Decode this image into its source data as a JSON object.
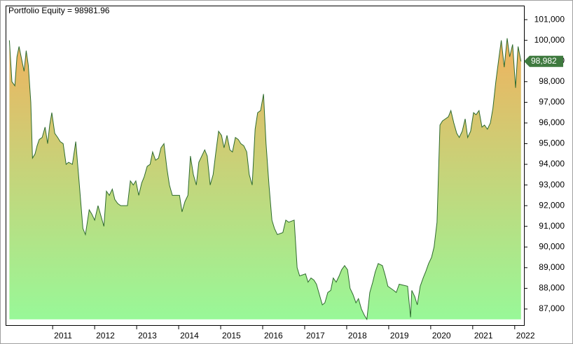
{
  "chart_data": {
    "type": "area",
    "title": "Portfolio Equity = 98981.96",
    "x": [
      2009.97,
      2010.03,
      2010.1,
      2010.15,
      2010.2,
      2010.27,
      2010.32,
      2010.37,
      2010.42,
      2010.48,
      2010.52,
      2010.58,
      2010.63,
      2010.68,
      2010.75,
      2010.82,
      2010.88,
      2010.93,
      2010.98,
      2011.05,
      2011.12,
      2011.18,
      2011.25,
      2011.32,
      2011.38,
      2011.47,
      2011.55,
      2011.62,
      2011.72,
      2011.78,
      2011.87,
      2011.93,
      2012.0,
      2012.08,
      2012.15,
      2012.22,
      2012.28,
      2012.35,
      2012.42,
      2012.48,
      2012.55,
      2012.62,
      2012.78,
      2012.85,
      2012.92,
      2012.98,
      2013.05,
      2013.12,
      2013.18,
      2013.25,
      2013.32,
      2013.38,
      2013.45,
      2013.52,
      2013.58,
      2013.65,
      2013.72,
      2013.78,
      2013.85,
      2014.02,
      2014.08,
      2014.15,
      2014.22,
      2014.28,
      2014.35,
      2014.42,
      2014.48,
      2014.55,
      2014.62,
      2014.68,
      2014.75,
      2014.82,
      2014.88,
      2014.95,
      2015.02,
      2015.08,
      2015.15,
      2015.22,
      2015.28,
      2015.35,
      2015.42,
      2015.48,
      2015.55,
      2015.62,
      2015.68,
      2015.75,
      2015.82,
      2015.88,
      2015.95,
      2016.02,
      2016.08,
      2016.15,
      2016.22,
      2016.28,
      2016.35,
      2016.48,
      2016.55,
      2016.62,
      2016.75,
      2016.82,
      2016.88,
      2017.02,
      2017.08,
      2017.15,
      2017.22,
      2017.28,
      2017.35,
      2017.42,
      2017.48,
      2017.55,
      2017.62,
      2017.68,
      2017.75,
      2017.82,
      2017.88,
      2017.95,
      2018.02,
      2018.08,
      2018.15,
      2018.22,
      2018.28,
      2018.35,
      2018.42,
      2018.48,
      2018.55,
      2018.62,
      2018.68,
      2018.75,
      2018.85,
      2018.92,
      2018.98,
      2019.05,
      2019.12,
      2019.18,
      2019.25,
      2019.45,
      2019.52,
      2019.55,
      2019.62,
      2019.68,
      2019.75,
      2019.82,
      2019.88,
      2019.95,
      2020.02,
      2020.08,
      2020.15,
      2020.22,
      2020.28,
      2020.35,
      2020.42,
      2020.48,
      2020.55,
      2020.62,
      2020.68,
      2020.75,
      2020.82,
      2020.88,
      2020.95,
      2021.02,
      2021.08,
      2021.15,
      2021.22,
      2021.28,
      2021.35,
      2021.42,
      2021.48,
      2021.55,
      2021.62,
      2021.68,
      2021.75,
      2021.82,
      2021.88,
      2021.95,
      2022.02,
      2022.08,
      2022.15
    ],
    "series": [
      {
        "name": "Portfolio Equity",
        "color": "#2e6b2e",
        "values": [
          100000,
          98000,
          97800,
          99200,
          99700,
          99000,
          98500,
          99500,
          98800,
          97000,
          94300,
          94500,
          94900,
          95200,
          95300,
          95800,
          95000,
          95900,
          96500,
          95500,
          95300,
          95100,
          95000,
          94000,
          94100,
          94000,
          95100,
          93400,
          90900,
          90600,
          91800,
          91600,
          91300,
          92000,
          91500,
          91000,
          92700,
          92500,
          92800,
          92300,
          92100,
          92000,
          92000,
          93200,
          93000,
          93200,
          92500,
          93100,
          93400,
          93900,
          94000,
          94600,
          94200,
          94300,
          94800,
          95000,
          93800,
          93000,
          92500,
          92500,
          91700,
          92200,
          92500,
          94400,
          93500,
          93000,
          94100,
          94400,
          94700,
          94400,
          93000,
          93500,
          94500,
          95600,
          95400,
          94800,
          95400,
          94700,
          94600,
          95300,
          95200,
          95000,
          94900,
          94600,
          93500,
          93000,
          95700,
          96500,
          96600,
          97400,
          95000,
          93000,
          91300,
          90900,
          90600,
          90700,
          91300,
          91200,
          91300,
          89000,
          88600,
          88700,
          88300,
          88500,
          88400,
          88200,
          87700,
          87200,
          87300,
          87800,
          87900,
          88500,
          88300,
          88600,
          88900,
          89100,
          88900,
          88000,
          87700,
          87300,
          87500,
          87000,
          86700,
          86500,
          87800,
          88300,
          88800,
          89200,
          89100,
          88600,
          88100,
          88000,
          87900,
          87800,
          88200,
          88100,
          86600,
          87900,
          87600,
          87200,
          88100,
          88500,
          88800,
          89200,
          89500,
          90000,
          91200,
          95900,
          96100,
          96200,
          96300,
          96600,
          96000,
          95500,
          95300,
          95600,
          96200,
          95300,
          95600,
          96500,
          96400,
          96600,
          95800,
          95900,
          95700,
          96000,
          96700,
          98000,
          99100,
          100000,
          98700,
          100100,
          99200,
          99800,
          97700,
          99700,
          98981.96
        ]
      }
    ],
    "last_value_label": "98,982",
    "gradient_colors": [
      "#f0b25e",
      "#98f898"
    ],
    "xlim": [
      2009.88,
      2022.22
    ],
    "xticks": [
      2011,
      2012,
      2013,
      2014,
      2015,
      2016,
      2017,
      2018,
      2019,
      2020,
      2021,
      2022
    ],
    "ylim": [
      86220,
      101680
    ],
    "yticks": [
      {
        "value": 87000,
        "label": "87,000"
      },
      {
        "value": 88000,
        "label": "88,000"
      },
      {
        "value": 89000,
        "label": "89,000"
      },
      {
        "value": 90000,
        "label": "90,000"
      },
      {
        "value": 91000,
        "label": "91,000"
      },
      {
        "value": 92000,
        "label": "92,000"
      },
      {
        "value": 93000,
        "label": "93,000"
      },
      {
        "value": 94000,
        "label": "94,000"
      },
      {
        "value": 95000,
        "label": "95,000"
      },
      {
        "value": 96000,
        "label": "96,000"
      },
      {
        "value": 97000,
        "label": "97,000"
      },
      {
        "value": 98000,
        "label": "98,000"
      },
      {
        "value": 99000,
        "label": "99,000"
      },
      {
        "value": 100000,
        "label": "100,000"
      },
      {
        "value": 101000,
        "label": "101,000"
      }
    ]
  }
}
